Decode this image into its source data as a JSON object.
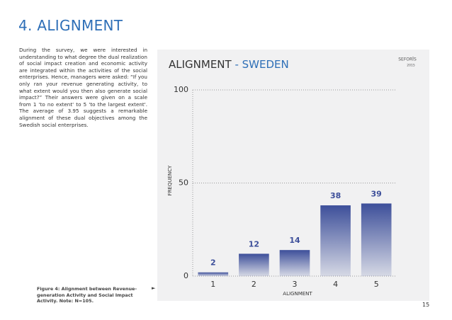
{
  "header": {
    "title": "4. ALIGNMENT"
  },
  "body": {
    "paragraph": "During the survey, we were interested in understanding to what degree the dual realization of social impact creation and economic activity are integrated within the activities of the social enterprises. Hence, managers were asked: “If you only ran your revenue generating activity, to what extent would you then also generate social impact?” Their answers were given on a scale from 1 'to no extent' to 5 'to the largest extent'. The average of 3.95 suggests a remarkable alignment of these dual objectives among the Swedish social enterprises.",
    "caption": "Figure 4: Alignment between Revenue-generation Activity and Social Impact Activity. Note: N=105."
  },
  "logo": {
    "name": "SEFORÏS",
    "year": "2015"
  },
  "footer": {
    "page_number": "15"
  },
  "chart_data": {
    "type": "bar",
    "title": {
      "main": "ALIGNMENT",
      "highlight": "- SWEDEN"
    },
    "x_label": "ALIGNMENT",
    "y_label": "FREQUENCY",
    "categories": [
      "1",
      "2",
      "3",
      "4",
      "5"
    ],
    "values": [
      2,
      12,
      14,
      38,
      39
    ],
    "color": "#3d4f9a",
    "ylim": [
      0,
      100
    ],
    "yticks": [
      0,
      50,
      100
    ],
    "grid": true
  }
}
